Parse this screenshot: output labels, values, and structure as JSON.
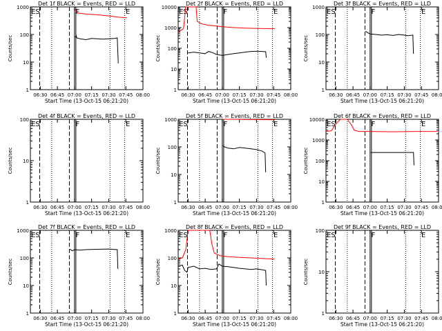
{
  "colors": {
    "events": "#000000",
    "lld": "#ff0000",
    "axis": "#000000"
  },
  "x_axis": {
    "range": [
      "06:21:20",
      "08:00:00"
    ],
    "ticks": [
      "06:30",
      "06:45",
      "07:00",
      "07:15",
      "07:30",
      "07:45",
      "08:00"
    ],
    "label": "Start Time (13-Oct-15 06:21:20)"
  },
  "markers": {
    "dashed": [
      "06:29:30",
      "06:55:30"
    ],
    "dotted": [
      "06:40:00",
      "07:31:10",
      "07:44:00"
    ],
    "solid": [
      "07:00:00"
    ]
  },
  "letters": [
    {
      "text": "E",
      "t": "06:22:00"
    },
    {
      "text": "S",
      "t": "06:25:50"
    },
    {
      "text": "F",
      "t": "07:01:00"
    },
    {
      "text": "E",
      "t": "07:44:50"
    }
  ],
  "chart_data": [
    {
      "type": "line",
      "title": "Det 1f BLACK = Events, RED = LLD",
      "xlabel": "Start Time (13-Oct-15 06:21:20)",
      "ylabel": "Counts/sec",
      "ylim": [
        1,
        1000
      ],
      "yticks": [
        "1",
        "10",
        "100",
        "1000"
      ],
      "series": [
        {
          "color": "events",
          "points": [
            [
              "07:00:30",
              80
            ],
            [
              "07:01:30",
              90
            ],
            [
              "07:02:00",
              75
            ],
            [
              "07:05:00",
              70
            ],
            [
              "07:10:00",
              65
            ],
            [
              "07:15:00",
              72
            ],
            [
              "07:20:00",
              70
            ],
            [
              "07:25:00",
              68
            ],
            [
              "07:30:00",
              70
            ],
            [
              "07:35:00",
              72
            ],
            [
              "07:37:30",
              75
            ],
            [
              "07:38:00",
              20
            ],
            [
              "07:38:20",
              9
            ]
          ]
        },
        {
          "color": "lld",
          "points": [
            [
              "07:00:30",
              800
            ],
            [
              "07:03:00",
              600
            ],
            [
              "07:10:00",
              550
            ],
            [
              "07:20:00",
              520
            ],
            [
              "07:30:00",
              470
            ],
            [
              "07:40:00",
              420
            ],
            [
              "07:46:00",
              400
            ]
          ]
        }
      ]
    },
    {
      "type": "line",
      "title": "Det 2f BLACK = Events, RED = LLD",
      "xlabel": "Start Time (13-Oct-15 06:21:20)",
      "ylabel": "Counts/sec",
      "ylim": [
        1,
        10000
      ],
      "yticks": [
        "1",
        "10",
        "100",
        "1000",
        "10000"
      ],
      "series": [
        {
          "color": "events",
          "points": [
            [
              "06:30:00",
              60
            ],
            [
              "06:35:00",
              65
            ],
            [
              "06:40:00",
              60
            ],
            [
              "06:45:00",
              55
            ],
            [
              "06:48:00",
              70
            ],
            [
              "06:52:00",
              60
            ],
            [
              "06:55:00",
              50
            ],
            [
              "07:00:00",
              45
            ],
            [
              "07:05:00",
              50
            ],
            [
              "07:10:00",
              55
            ],
            [
              "07:15:00",
              60
            ],
            [
              "07:20:00",
              65
            ],
            [
              "07:25:00",
              70
            ],
            [
              "07:30:00",
              72
            ],
            [
              "07:35:00",
              70
            ],
            [
              "07:38:00",
              68
            ],
            [
              "07:38:30",
              35
            ]
          ]
        },
        {
          "color": "lld",
          "points": [
            [
              "06:21:20",
              600
            ],
            [
              "06:26:00",
              900
            ],
            [
              "06:28:00",
              10000
            ],
            [
              "06:37:00",
              10000
            ],
            [
              "06:38:00",
              2000
            ],
            [
              "06:42:00",
              1500
            ],
            [
              "06:48:00",
              1300
            ],
            [
              "06:54:00",
              1200
            ],
            [
              "07:00:00",
              1100
            ],
            [
              "07:10:00",
              1000
            ],
            [
              "07:20:00",
              950
            ],
            [
              "07:35:00",
              900
            ],
            [
              "07:46:00",
              880
            ]
          ]
        }
      ]
    },
    {
      "type": "line",
      "title": "Det 3f BLACK = Events, RED = LLD",
      "xlabel": "Start Time (13-Oct-15 06:21:20)",
      "ylabel": "Counts/sec",
      "ylim": [
        1,
        1000
      ],
      "yticks": [
        "1",
        "10",
        "100",
        "1000"
      ],
      "series": [
        {
          "color": "events",
          "points": [
            [
              "06:56:00",
              130
            ],
            [
              "06:58:00",
              115
            ],
            [
              "07:00:00",
              105
            ],
            [
              "07:05:00",
              100
            ],
            [
              "07:10:00",
              95
            ],
            [
              "07:15:00",
              98
            ],
            [
              "07:20:00",
              92
            ],
            [
              "07:25:00",
              100
            ],
            [
              "07:30:00",
              95
            ],
            [
              "07:33:00",
              90
            ],
            [
              "07:37:30",
              95
            ],
            [
              "07:38:00",
              20
            ]
          ]
        }
      ]
    },
    {
      "type": "line",
      "title": "Det 4f BLACK = Events, RED = LLD",
      "xlabel": "Start Time (13-Oct-15 06:21:20)",
      "ylabel": "Counts/sec",
      "ylim": [
        1,
        100
      ],
      "yticks": [
        "1",
        "10",
        "100"
      ],
      "series": []
    },
    {
      "type": "line",
      "title": "Det 5f BLACK = Events, RED = LLD",
      "xlabel": "Start Time (13-Oct-15 06:21:20)",
      "ylabel": "Counts/sec",
      "ylim": [
        1,
        1000
      ],
      "yticks": [
        "1",
        "10",
        "100",
        "1000"
      ],
      "series": [
        {
          "color": "events",
          "points": [
            [
              "07:00:30",
              110
            ],
            [
              "07:02:00",
              100
            ],
            [
              "07:05:00",
              90
            ],
            [
              "07:10:00",
              85
            ],
            [
              "07:15:00",
              95
            ],
            [
              "07:20:00",
              90
            ],
            [
              "07:25:00",
              85
            ],
            [
              "07:30:00",
              80
            ],
            [
              "07:35:00",
              70
            ],
            [
              "07:37:30",
              60
            ],
            [
              "07:38:00",
              12
            ]
          ]
        },
        {
          "color": "lld",
          "points": [
            [
              "07:00:30",
              1000
            ],
            [
              "07:10:00",
              1000
            ],
            [
              "07:20:00",
              990
            ],
            [
              "07:30:00",
              980
            ],
            [
              "07:40:00",
              970
            ],
            [
              "07:46:00",
              960
            ]
          ]
        }
      ]
    },
    {
      "type": "line",
      "title": "Det 6f BLACK = Events, RED = LLD",
      "xlabel": "Start Time (13-Oct-15 06:21:20)",
      "ylabel": "Counts/sec",
      "ylim": [
        1,
        10000
      ],
      "yticks": [
        "1",
        "10",
        "100",
        "1000",
        "10000"
      ],
      "series": [
        {
          "color": "events",
          "points": [
            [
              "07:00:30",
              250
            ],
            [
              "07:10:00",
              250
            ],
            [
              "07:20:00",
              250
            ],
            [
              "07:30:00",
              250
            ],
            [
              "07:38:00",
              250
            ],
            [
              "07:38:30",
              60
            ]
          ]
        },
        {
          "color": "lld",
          "points": [
            [
              "06:21:20",
              2600
            ],
            [
              "06:26:00",
              2800
            ],
            [
              "06:30:00",
              6000
            ],
            [
              "06:34:00",
              10000
            ],
            [
              "06:40:00",
              10000
            ],
            [
              "06:44:00",
              5000
            ],
            [
              "06:46:00",
              3000
            ],
            [
              "06:50:00",
              2600
            ],
            [
              "07:00:00",
              2600
            ],
            [
              "07:20:00",
              2500
            ],
            [
              "07:40:00",
              2600
            ],
            [
              "07:59:00",
              2600
            ]
          ]
        }
      ]
    },
    {
      "type": "line",
      "title": "Det 7f BLACK = Events, RED = LLD",
      "xlabel": "Start Time (13-Oct-15 06:21:20)",
      "ylabel": "Counts/sec",
      "ylim": [
        1,
        1000
      ],
      "yticks": [
        "1",
        "10",
        "100",
        "1000"
      ],
      "series": [
        {
          "color": "events",
          "points": [
            [
              "06:56:00",
              210
            ],
            [
              "06:58:00",
              180
            ],
            [
              "07:00:00",
              200
            ],
            [
              "07:05:00",
              190
            ],
            [
              "07:10:00",
              200
            ],
            [
              "07:20:00",
              205
            ],
            [
              "07:30:00",
              210
            ],
            [
              "07:37:30",
              200
            ],
            [
              "07:38:00",
              40
            ]
          ]
        }
      ]
    },
    {
      "type": "line",
      "title": "Det 8f BLACK = Events, RED = LLD",
      "xlabel": "Start Time (13-Oct-15 06:21:20)",
      "ylabel": "Counts/sec",
      "ylim": [
        1,
        1000
      ],
      "yticks": [
        "1",
        "10",
        "100",
        "1000"
      ],
      "series": [
        {
          "color": "events",
          "points": [
            [
              "06:21:20",
              50
            ],
            [
              "06:25:00",
              55
            ],
            [
              "06:27:00",
              35
            ],
            [
              "06:29:00",
              30
            ],
            [
              "06:30:00",
              45
            ],
            [
              "06:35:00",
              50
            ],
            [
              "06:40:00",
              40
            ],
            [
              "06:45:00",
              42
            ],
            [
              "06:50:00",
              38
            ],
            [
              "06:55:00",
              40
            ],
            [
              "06:57:00",
              60
            ],
            [
              "07:00:00",
              50
            ],
            [
              "07:05:00",
              48
            ],
            [
              "07:10:00",
              45
            ],
            [
              "07:15:00",
              42
            ],
            [
              "07:20:00",
              40
            ],
            [
              "07:25:00",
              38
            ],
            [
              "07:30:00",
              40
            ],
            [
              "07:35:00",
              37
            ],
            [
              "07:38:00",
              35
            ],
            [
              "07:38:30",
              10
            ]
          ]
        },
        {
          "color": "lld",
          "points": [
            [
              "06:21:20",
              90
            ],
            [
              "06:25:00",
              100
            ],
            [
              "06:28:00",
              200
            ],
            [
              "06:30:00",
              1000
            ],
            [
              "06:49:00",
              1000
            ],
            [
              "06:51:00",
              300
            ],
            [
              "06:53:00",
              150
            ],
            [
              "06:58:00",
              120
            ],
            [
              "07:05:00",
              110
            ],
            [
              "07:15:00",
              105
            ],
            [
              "07:25:00",
              100
            ],
            [
              "07:35:00",
              95
            ],
            [
              "07:46:00",
              90
            ]
          ]
        }
      ]
    },
    {
      "type": "line",
      "title": "Det 9f BLACK = Events, RED = LLD",
      "xlabel": "Start Time (13-Oct-15 06:21:20)",
      "ylabel": "Counts/sec",
      "ylim": [
        1,
        100
      ],
      "yticks": [
        "1",
        "10",
        "100"
      ],
      "series": []
    }
  ]
}
